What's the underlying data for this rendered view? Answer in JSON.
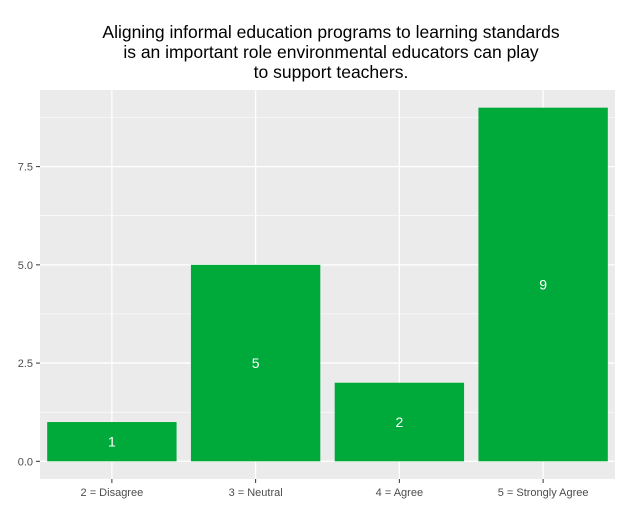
{
  "chart_data": {
    "type": "bar",
    "title_lines": [
      "Aligning informal education programs to learning standards",
      "is an important role environmental educators can play",
      "to support teachers."
    ],
    "xlabel": "",
    "ylabel": "",
    "categories": [
      "2 = Disagree",
      "3 = Neutral",
      "4 = Agree",
      "5 = Strongly Agree"
    ],
    "values": [
      1,
      5,
      2,
      9
    ],
    "data_labels": [
      "1",
      "5",
      "2",
      "9"
    ],
    "y_ticks": [
      0,
      2.5,
      5,
      7.5
    ],
    "y_tick_labels": [
      "0.0",
      "2.5",
      "5.0",
      "7.5"
    ],
    "ylim": [
      -0.45,
      9.45
    ],
    "grid": true,
    "legend": "none",
    "colors": {
      "bar": "#00AA3A",
      "panel": "#EBEBEB",
      "grid": "#FFFFFF",
      "text": "#000000",
      "axis_text": "#4D4D4D",
      "data_label": "#FFFFFF"
    }
  }
}
